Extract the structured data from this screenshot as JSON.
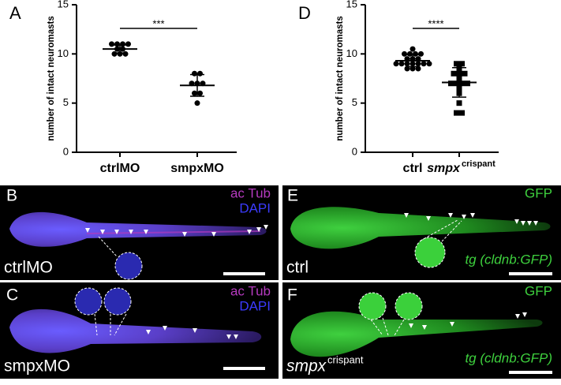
{
  "chart_data": [
    {
      "type": "dotplot",
      "panel": "A",
      "ylabel": "number of intact neuromasts",
      "categories": [
        "ctrlMO",
        "smpxMO"
      ],
      "category_superscripts": [
        null,
        null
      ],
      "category_italic": false,
      "values": [
        [
          11,
          11,
          11,
          11,
          10.5,
          10.5,
          10,
          10,
          10
        ],
        [
          8,
          8,
          7,
          7,
          7,
          6,
          6,
          5
        ]
      ],
      "means": [
        10.5,
        6.8
      ],
      "sds": [
        0.4,
        1.1
      ],
      "significance": "***",
      "ylim": [
        0,
        15
      ],
      "yticks": [
        0,
        5,
        10,
        15
      ]
    },
    {
      "type": "dotplot",
      "panel": "D",
      "ylabel": "number of intact neuromasts",
      "categories": [
        "ctrl",
        "smpx"
      ],
      "category_superscripts": [
        null,
        "crispant"
      ],
      "category_italic": true,
      "values": [
        [
          10.5,
          10,
          10,
          10,
          10,
          9.5,
          9.5,
          9.5,
          9,
          9,
          9,
          9,
          9,
          9,
          8.5,
          8.5,
          8.5,
          9
        ],
        [
          9,
          9,
          8.5,
          8,
          8,
          8,
          7.5,
          7,
          7,
          7,
          7,
          6.5,
          6,
          5,
          4,
          4
        ]
      ],
      "means": [
        9.3,
        7.1
      ],
      "sds": [
        0.6,
        1.5
      ],
      "significance": "****",
      "ylim": [
        0,
        15
      ],
      "yticks": [
        0,
        5,
        10,
        15
      ]
    }
  ],
  "panels": [
    {
      "letter": "B",
      "channels": [
        "ac Tub",
        "DAPI"
      ],
      "sample": "ctrlMO"
    },
    {
      "letter": "C",
      "channels": [
        "ac Tub",
        "DAPI"
      ],
      "sample": "smpxMO"
    },
    {
      "letter": "E",
      "channels": [
        "GFP"
      ],
      "sample": "ctrl",
      "transgene": "tg (cldnb:GFP)"
    },
    {
      "letter": "F",
      "channels": [
        "GFP"
      ],
      "sample": "smpx",
      "sample_sup": "crispant",
      "transgene": "tg (cldnb:GFP)"
    }
  ]
}
